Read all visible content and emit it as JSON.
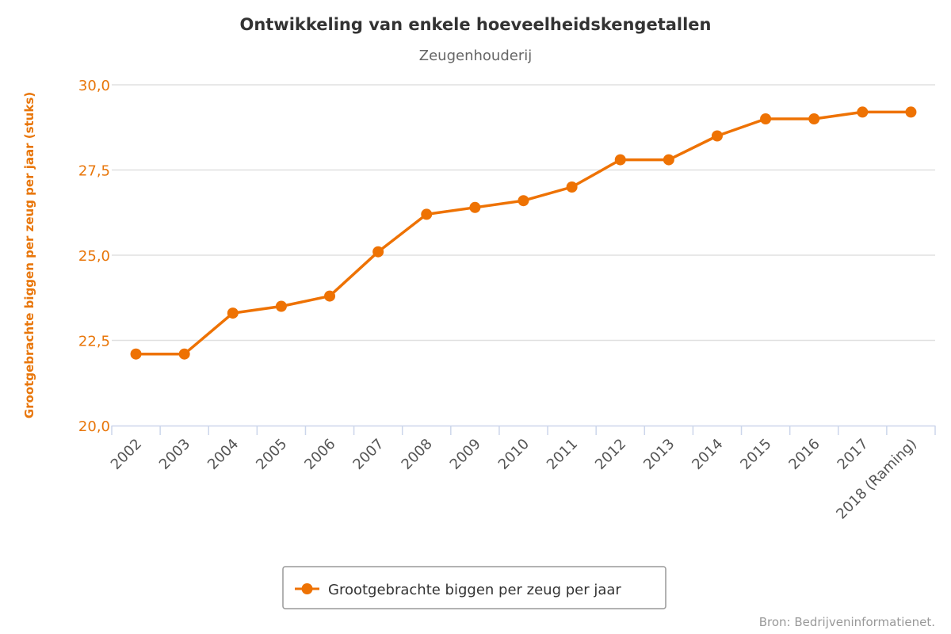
{
  "chart_data": {
    "type": "line",
    "title": "Ontwikkeling van enkele hoeveelheidskengetallen",
    "subtitle": "Zeugenhouderij",
    "xlabel": "",
    "ylabel": "Grootgebrachte biggen per zeug per jaar (stuks)",
    "ylim": [
      20,
      30
    ],
    "yticks": [
      "20,0",
      "22,5",
      "25,0",
      "27,5",
      "30,0"
    ],
    "ytick_values": [
      20,
      22.5,
      25,
      27.5,
      30
    ],
    "grid": true,
    "legend_position": "bottom-center",
    "categories": [
      "2002",
      "2003",
      "2004",
      "2005",
      "2006",
      "2007",
      "2008",
      "2009",
      "2010",
      "2011",
      "2012",
      "2013",
      "2014",
      "2015",
      "2016",
      "2017",
      "2018 (Raming)"
    ],
    "series": [
      {
        "name": "Grootgebrachte biggen per zeug per jaar",
        "color": "#EE7203",
        "values": [
          22.1,
          22.1,
          23.3,
          23.5,
          23.8,
          25.1,
          26.2,
          26.4,
          26.6,
          27.0,
          27.8,
          27.8,
          28.5,
          29.0,
          29.0,
          29.2,
          29.2
        ]
      }
    ],
    "credits": "Bron: Bedrijveninformatienet."
  }
}
